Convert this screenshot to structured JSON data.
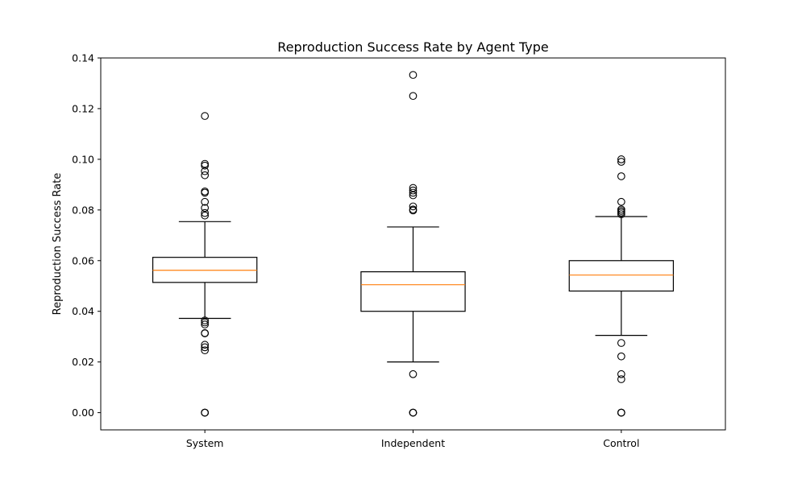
{
  "chart_data": {
    "type": "box",
    "title": "Reproduction Success Rate by Agent Type",
    "xlabel": "",
    "ylabel": "Reproduction Success Rate",
    "ylim": [
      -0.0068,
      0.14
    ],
    "yticks": [
      0.0,
      0.02,
      0.04,
      0.06,
      0.08,
      0.1,
      0.12,
      0.14
    ],
    "ytick_labels": [
      "0.00",
      "0.02",
      "0.04",
      "0.06",
      "0.08",
      "0.10",
      "0.12",
      "0.14"
    ],
    "grid": false,
    "categories": [
      "System",
      "Independent",
      "Control"
    ],
    "boxes": [
      {
        "name": "System",
        "whisker_low": 0.0372,
        "q1": 0.0514,
        "median": 0.0562,
        "q3": 0.0613,
        "whisker_high": 0.0754,
        "outliers": [
          0.0,
          0.0,
          0.0,
          0.0246,
          0.0258,
          0.0268,
          0.0313,
          0.0314,
          0.0348,
          0.0356,
          0.0364,
          0.0778,
          0.0788,
          0.0808,
          0.0832,
          0.0868,
          0.0873,
          0.0937,
          0.0953,
          0.0975,
          0.0982,
          0.1171
        ]
      },
      {
        "name": "Independent",
        "whisker_low": 0.02,
        "q1": 0.04,
        "median": 0.0505,
        "q3": 0.0556,
        "whisker_high": 0.0733,
        "outliers": [
          0.0,
          0.0,
          0.0,
          0.0152,
          0.0798,
          0.0802,
          0.0814,
          0.0858,
          0.0868,
          0.0877,
          0.0887,
          0.125,
          0.1333
        ]
      },
      {
        "name": "Control",
        "whisker_low": 0.0305,
        "q1": 0.048,
        "median": 0.0543,
        "q3": 0.06,
        "whisker_high": 0.0774,
        "outliers": [
          0.0,
          0.0,
          0.0,
          0.0132,
          0.0152,
          0.0222,
          0.0275,
          0.0783,
          0.079,
          0.0796,
          0.0802,
          0.0832,
          0.0933,
          0.099,
          0.1
        ]
      }
    ],
    "colors": {
      "box": "#000000",
      "median": "#ff7f0e",
      "outlier_edge": "#000000"
    }
  }
}
